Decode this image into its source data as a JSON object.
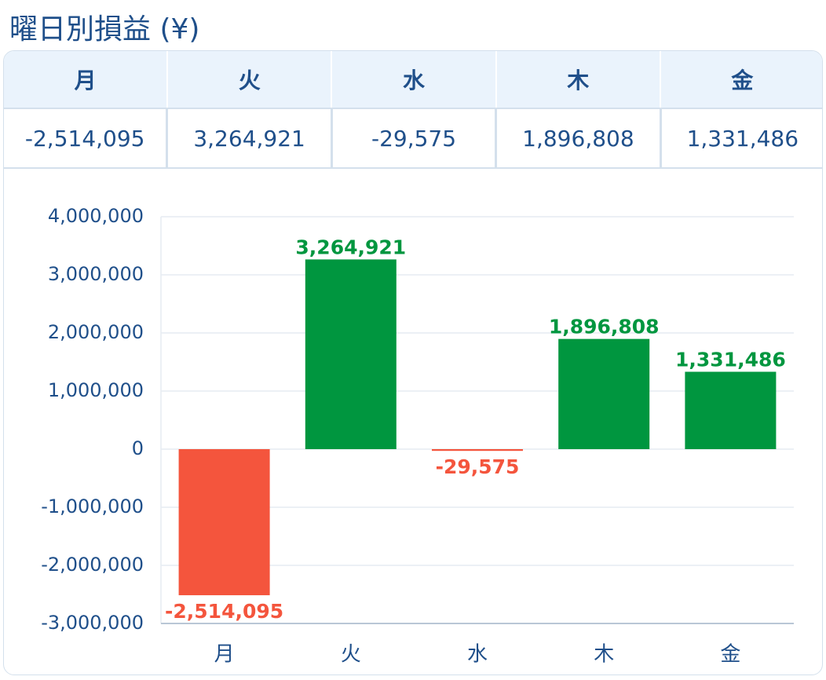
{
  "title": "曜日別損益 (¥)",
  "colors": {
    "positive": "#00963f",
    "negative": "#f4553d",
    "text": "#1f4f8a",
    "grid": "#e6ecf2",
    "axis": "#b9c7d6"
  },
  "table": {
    "headers": [
      "月",
      "火",
      "水",
      "木",
      "金"
    ],
    "values": [
      "-2,514,095",
      "3,264,921",
      "-29,575",
      "1,896,808",
      "1,331,486"
    ]
  },
  "chart_data": {
    "type": "bar",
    "categories": [
      "月",
      "火",
      "水",
      "木",
      "金"
    ],
    "values": [
      -2514095,
      3264921,
      -29575,
      1896808,
      1331486
    ],
    "data_labels": [
      "-2,514,095",
      "3,264,921",
      "-29,575",
      "1,896,808",
      "1,331,486"
    ],
    "ylim": [
      -3000000,
      4000000
    ],
    "yticks": [
      4000000,
      3000000,
      2000000,
      1000000,
      0,
      -1000000,
      -2000000,
      -3000000
    ],
    "ytick_labels": [
      "4,000,000",
      "3,000,000",
      "2,000,000",
      "1,000,000",
      "0",
      "-1,000,000",
      "-2,000,000",
      "-3,000,000"
    ],
    "grid": true,
    "title": "",
    "xlabel": "",
    "ylabel": ""
  }
}
